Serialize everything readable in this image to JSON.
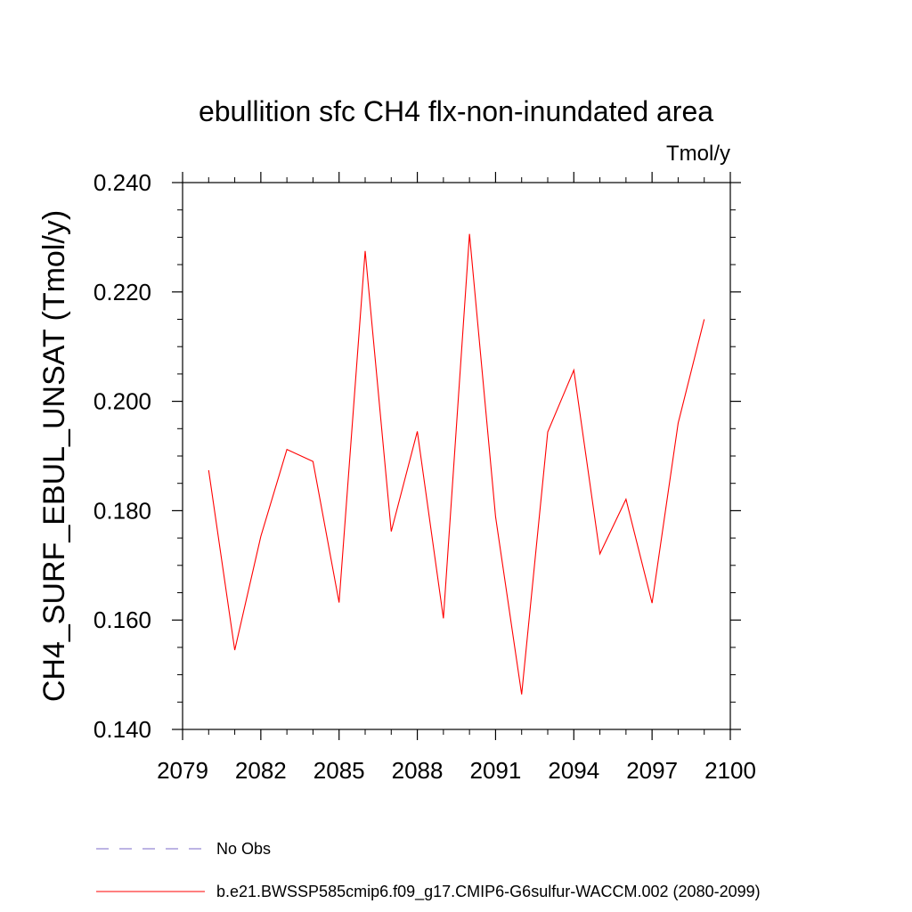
{
  "chart_data": {
    "type": "line",
    "title": "ebullition sfc CH4 flx-non-inundated area",
    "units_label": "Tmol/y",
    "ylabel": "CH4_SURF_EBUL_UNSAT  (Tmol/y)",
    "xlabel": "",
    "xlim": [
      2079,
      2100
    ],
    "ylim": [
      0.14,
      0.24
    ],
    "x_ticks": [
      "2079",
      "2082",
      "2085",
      "2088",
      "2091",
      "2094",
      "2097",
      "2100"
    ],
    "y_ticks": [
      "0.140",
      "0.160",
      "0.180",
      "0.200",
      "0.220",
      "0.240"
    ],
    "grid": false,
    "series": [
      {
        "name": "b.e21.BWSSP585cmip6.f09_g17.CMIP6-G6sulfur-WACCM.002 (2080-2099)",
        "color": "#ff0000",
        "x": [
          2080,
          2081,
          2082,
          2083,
          2084,
          2085,
          2086,
          2087,
          2088,
          2089,
          2090,
          2091,
          2092,
          2093,
          2094,
          2095,
          2096,
          2097,
          2098,
          2099
        ],
        "values": [
          0.1874,
          0.1545,
          0.1753,
          0.1912,
          0.189,
          0.1632,
          0.2275,
          0.1762,
          0.1945,
          0.1603,
          0.2306,
          0.1789,
          0.1464,
          0.1944,
          0.2057,
          0.1721,
          0.1821,
          0.1631,
          0.196,
          0.215
        ]
      }
    ],
    "legend": {
      "placement": "bottom",
      "entries": [
        {
          "label": "No Obs",
          "color": "#7b68c8",
          "style": "dashed"
        },
        {
          "label": "b.e21.BWSSP585cmip6.f09_g17.CMIP6-G6sulfur-WACCM.002 (2080-2099)",
          "color": "#ff0000",
          "style": "solid"
        }
      ]
    }
  }
}
